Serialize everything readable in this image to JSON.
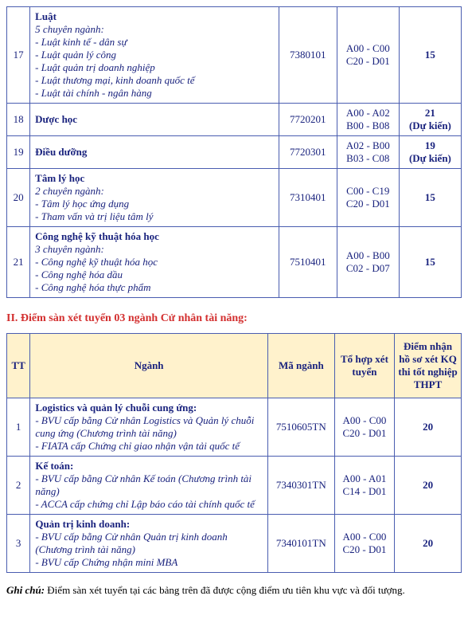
{
  "table1": {
    "rows": [
      {
        "tt": "17",
        "title": "Luật",
        "sub": "5 chuyên ngành:",
        "items": [
          "- Luật kinh tế - dân sự",
          "- Luật quản lý công",
          "- Luật quản trị doanh nghiệp",
          "- Luật thương mại, kinh doanh quốc tế",
          "- Luật tài chính - ngân hàng"
        ],
        "ma": "7380101",
        "tohop1": "A00 - C00",
        "tohop2": "C20 - D01",
        "diem": "15"
      },
      {
        "tt": "18",
        "title": "Dược học",
        "ma": "7720201",
        "tohop1": "A00 - A02",
        "tohop2": "B00 - B08",
        "diem": "21",
        "diem2": "(Dự kiến)"
      },
      {
        "tt": "19",
        "title": "Điều dưỡng",
        "ma": "7720301",
        "tohop1": "A02 - B00",
        "tohop2": "B03 - C08",
        "diem": "19",
        "diem2": "(Dự kiến)"
      },
      {
        "tt": "20",
        "title": "Tâm lý học",
        "sub": "2 chuyên ngành:",
        "items": [
          "- Tâm lý học ứng dụng",
          "- Tham vấn và trị liệu tâm lý"
        ],
        "ma": "7310401",
        "tohop1": "C00 - C19",
        "tohop2": "C20 - D01",
        "diem": "15"
      },
      {
        "tt": "21",
        "title": "Công nghệ kỹ thuật hóa học",
        "sub": "3 chuyên ngành:",
        "items": [
          "- Công nghệ kỹ thuật hóa học",
          "- Công nghệ hóa dầu",
          "- Công nghệ hóa thực phẩm"
        ],
        "ma": "7510401",
        "tohop1": "A00 - B00",
        "tohop2": "C02 - D07",
        "diem": "15"
      }
    ]
  },
  "section2_heading": "II. Điểm sàn xét tuyển 03 ngành Cử nhân tài năng:",
  "table2": {
    "headers": {
      "tt": "TT",
      "nganh": "Ngành",
      "ma": "Mã ngành",
      "tohop": "Tổ hợp xét tuyển",
      "diem": "Điểm nhận hồ sơ xét KQ thi tốt nghiệp THPT"
    },
    "rows": [
      {
        "tt": "1",
        "title": "Logistics và quản lý chuỗi cung ứng:",
        "items": [
          "- BVU cấp bằng Cử nhân Logistics và Quản lý chuỗi cung ứng (Chương trình tài năng)",
          "- FIATA cấp Chứng chỉ giao nhận vận tải quốc tế"
        ],
        "ma": "7510605TN",
        "tohop1": "A00 - C00",
        "tohop2": "C20 - D01",
        "diem": "20"
      },
      {
        "tt": "2",
        "title": "Kế toán:",
        "items": [
          "- BVU cấp bằng Cử nhân Kế toán (Chương trình tài năng)",
          "- ACCA cấp chứng chỉ Lập báo cáo tài chính quốc tế"
        ],
        "ma": "7340301TN",
        "tohop1": "A00 - A01",
        "tohop2": "C14 - D01",
        "diem": "20"
      },
      {
        "tt": "3",
        "title": "Quản trị kinh doanh:",
        "items": [
          "- BVU cấp bằng Cử nhân Quản trị kinh doanh (Chương trình tài năng)",
          "- BVU cấp Chứng nhận mini MBA"
        ],
        "ma": "7340101TN",
        "tohop1": "A00 - C00",
        "tohop2": "C20 - D01",
        "diem": "20"
      }
    ]
  },
  "footnote": {
    "label": "Ghi chú:",
    "text": " Điểm sàn xét tuyển tại các bảng trên đã được cộng điểm ưu tiên khu vực và đối tượng."
  }
}
